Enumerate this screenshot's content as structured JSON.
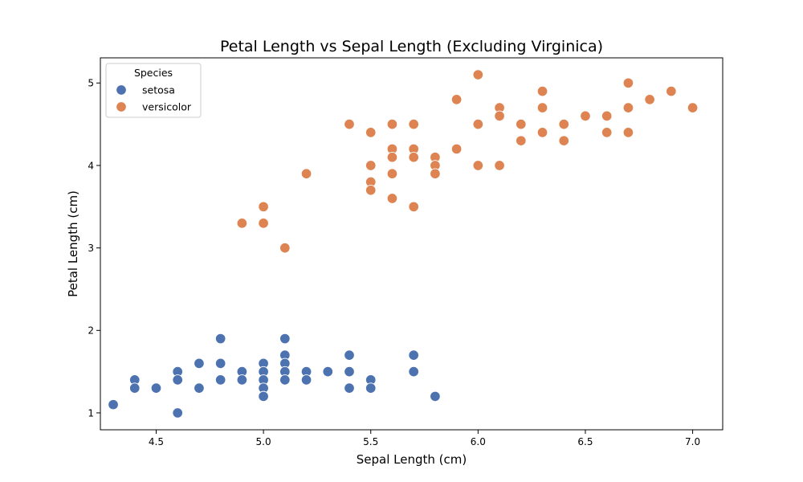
{
  "chart_data": {
    "type": "scatter",
    "title": "Petal Length vs Sepal Length (Excluding Virginica)",
    "xlabel": "Sepal Length (cm)",
    "ylabel": "Petal Length (cm)",
    "xlim": [
      4.24,
      7.14
    ],
    "ylim": [
      0.795,
      5.305
    ],
    "xticks": [
      4.5,
      5.0,
      5.5,
      6.0,
      6.5,
      7.0
    ],
    "xtick_labels": [
      "4.5",
      "5.0",
      "5.5",
      "6.0",
      "6.5",
      "7.0"
    ],
    "yticks": [
      1,
      2,
      3,
      4,
      5
    ],
    "ytick_labels": [
      "1",
      "2",
      "3",
      "4",
      "5"
    ],
    "grid": false,
    "legend": {
      "title": "Species",
      "placement": "top-left"
    },
    "series": [
      {
        "name": "setosa",
        "color": "#4c72b0",
        "points": [
          [
            4.3,
            1.1
          ],
          [
            4.4,
            1.4
          ],
          [
            4.4,
            1.3
          ],
          [
            4.5,
            1.3
          ],
          [
            4.6,
            1.5
          ],
          [
            4.6,
            1.4
          ],
          [
            4.6,
            1.0
          ],
          [
            4.7,
            1.6
          ],
          [
            4.7,
            1.3
          ],
          [
            4.8,
            1.9
          ],
          [
            4.8,
            1.6
          ],
          [
            4.8,
            1.4
          ],
          [
            4.9,
            1.5
          ],
          [
            4.9,
            1.4
          ],
          [
            5.0,
            1.6
          ],
          [
            5.0,
            1.5
          ],
          [
            5.0,
            1.4
          ],
          [
            5.0,
            1.3
          ],
          [
            5.0,
            1.2
          ],
          [
            5.1,
            1.9
          ],
          [
            5.1,
            1.7
          ],
          [
            5.1,
            1.6
          ],
          [
            5.1,
            1.5
          ],
          [
            5.1,
            1.4
          ],
          [
            5.2,
            1.5
          ],
          [
            5.2,
            1.4
          ],
          [
            5.3,
            1.5
          ],
          [
            5.4,
            1.7
          ],
          [
            5.4,
            1.5
          ],
          [
            5.4,
            1.3
          ],
          [
            5.5,
            1.4
          ],
          [
            5.5,
            1.3
          ],
          [
            5.7,
            1.7
          ],
          [
            5.7,
            1.5
          ],
          [
            5.8,
            1.2
          ]
        ]
      },
      {
        "name": "versicolor",
        "color": "#dd8452",
        "points": [
          [
            4.9,
            3.3
          ],
          [
            5.0,
            3.5
          ],
          [
            5.0,
            3.3
          ],
          [
            5.1,
            3.0
          ],
          [
            5.2,
            3.9
          ],
          [
            5.4,
            4.5
          ],
          [
            5.5,
            4.4
          ],
          [
            5.5,
            4.0
          ],
          [
            5.5,
            3.8
          ],
          [
            5.5,
            3.7
          ],
          [
            5.6,
            4.5
          ],
          [
            5.6,
            4.2
          ],
          [
            5.6,
            4.1
          ],
          [
            5.6,
            3.9
          ],
          [
            5.6,
            3.6
          ],
          [
            5.7,
            4.5
          ],
          [
            5.7,
            4.2
          ],
          [
            5.7,
            4.1
          ],
          [
            5.7,
            3.5
          ],
          [
            5.8,
            4.1
          ],
          [
            5.8,
            4.0
          ],
          [
            5.8,
            3.9
          ],
          [
            5.9,
            4.8
          ],
          [
            5.9,
            4.2
          ],
          [
            6.0,
            5.1
          ],
          [
            6.0,
            4.5
          ],
          [
            6.0,
            4.0
          ],
          [
            6.1,
            4.7
          ],
          [
            6.1,
            4.6
          ],
          [
            6.1,
            4.0
          ],
          [
            6.2,
            4.5
          ],
          [
            6.2,
            4.3
          ],
          [
            6.3,
            4.9
          ],
          [
            6.3,
            4.7
          ],
          [
            6.3,
            4.4
          ],
          [
            6.4,
            4.5
          ],
          [
            6.4,
            4.3
          ],
          [
            6.5,
            4.6
          ],
          [
            6.6,
            4.6
          ],
          [
            6.6,
            4.4
          ],
          [
            6.7,
            5.0
          ],
          [
            6.7,
            4.7
          ],
          [
            6.7,
            4.4
          ],
          [
            6.8,
            4.8
          ],
          [
            6.9,
            4.9
          ],
          [
            7.0,
            4.7
          ]
        ]
      }
    ]
  }
}
